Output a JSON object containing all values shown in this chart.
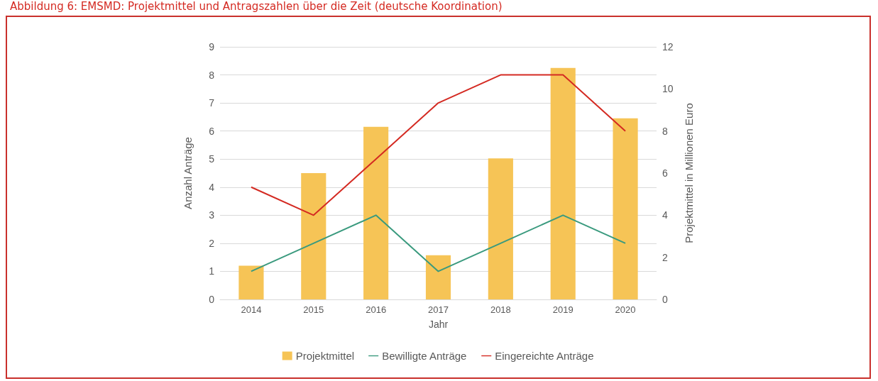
{
  "chart_data": {
    "type": "bar",
    "title": "Abbildung 6: EMSMD: Projektmittel und Antragszahlen über die Zeit (deutsche Koordination)",
    "xlabel": "Jahr",
    "ylabel": "Anzahl Anträge",
    "y2label": "Projektmittel in Millionen Euro",
    "categories": [
      "2014",
      "2015",
      "2016",
      "2017",
      "2018",
      "2019",
      "2020"
    ],
    "series": [
      {
        "name": "Projektmittel",
        "axis": "y2",
        "color": "#f6c456",
        "values": [
          1.6,
          6.0,
          8.2,
          2.1,
          6.7,
          11.0,
          8.6
        ]
      },
      {
        "name": "Bewilligte Anträge",
        "type": "line",
        "color": "#3a9a7e",
        "values": [
          1,
          2,
          3,
          1,
          2,
          3,
          2
        ]
      },
      {
        "name": "Eingereichte Anträge",
        "type": "line",
        "color": "#d42a22",
        "values": [
          4,
          3,
          5,
          7,
          8,
          8,
          6
        ]
      }
    ],
    "ylim": [
      0,
      9
    ],
    "yticks": [
      0,
      1,
      2,
      3,
      4,
      5,
      6,
      7,
      8,
      9
    ],
    "y2lim": [
      0,
      12
    ],
    "y2ticks": [
      0,
      2,
      4,
      6,
      8,
      10,
      12
    ],
    "grid": "y",
    "legend": "bottom",
    "marker": "none",
    "line_style": "solid"
  }
}
